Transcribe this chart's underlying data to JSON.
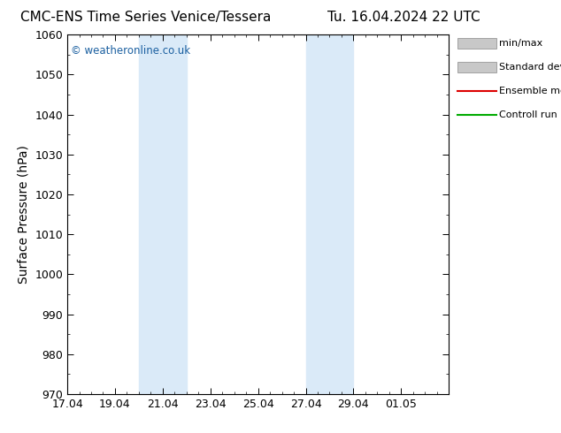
{
  "title_left": "CMC-ENS Time Series Venice/Tessera",
  "title_right": "Tu. 16.04.2024 22 UTC",
  "ylabel": "Surface Pressure (hPa)",
  "ylim": [
    970,
    1060
  ],
  "yticks": [
    970,
    980,
    990,
    1000,
    1010,
    1020,
    1030,
    1040,
    1050,
    1060
  ],
  "xlim": [
    0,
    16
  ],
  "xtick_labels": [
    "17.04",
    "19.04",
    "21.04",
    "23.04",
    "25.04",
    "27.04",
    "29.04",
    "01.05"
  ],
  "xtick_positions": [
    0,
    2,
    4,
    6,
    8,
    10,
    12,
    14
  ],
  "shaded_regions": [
    {
      "x_start": 3,
      "x_end": 5
    },
    {
      "x_start": 10,
      "x_end": 12
    }
  ],
  "shaded_color": "#daeaf8",
  "watermark": "© weatheronline.co.uk",
  "watermark_color": "#1a5fa0",
  "legend_items": [
    {
      "label": "min/max",
      "color": "#c8c8c8",
      "style": "fill"
    },
    {
      "label": "Standard deviation",
      "color": "#c8c8c8",
      "style": "fill2"
    },
    {
      "label": "Ensemble mean run",
      "color": "#dd0000",
      "style": "line"
    },
    {
      "label": "Controll run",
      "color": "#00aa00",
      "style": "line"
    }
  ],
  "background_color": "#ffffff",
  "title_fontsize": 12,
  "tick_fontsize": 9,
  "ylabel_fontsize": 10
}
